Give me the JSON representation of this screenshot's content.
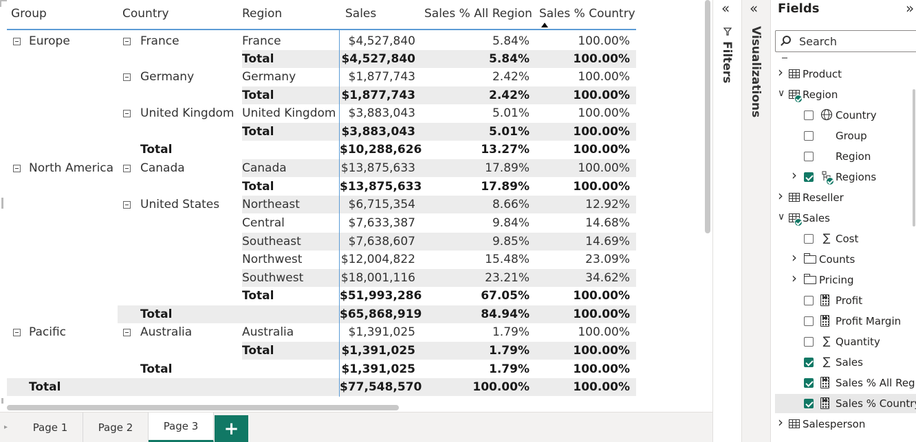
{
  "matrix": {
    "headers": [
      "Group",
      "Country",
      "Region",
      "Sales",
      "Sales % All Region",
      "Sales % Country"
    ],
    "sorted_column": "Sales % Country",
    "rows": [
      {
        "group": "Europe",
        "country": "France",
        "region": "France",
        "sales": "$4,527,840",
        "pct_all": "5.84%",
        "pct_country": "100.00%",
        "bold": false,
        "shade": false,
        "group_toggle": true,
        "country_toggle": true
      },
      {
        "group": "",
        "country": "",
        "region": "Total",
        "sales": "$4,527,840",
        "pct_all": "5.84%",
        "pct_country": "100.00%",
        "bold": true,
        "shade": true,
        "group_toggle": false,
        "country_toggle": false
      },
      {
        "group": "",
        "country": "Germany",
        "region": "Germany",
        "sales": "$1,877,743",
        "pct_all": "2.42%",
        "pct_country": "100.00%",
        "bold": false,
        "shade": false,
        "group_toggle": false,
        "country_toggle": true
      },
      {
        "group": "",
        "country": "",
        "region": "Total",
        "sales": "$1,877,743",
        "pct_all": "2.42%",
        "pct_country": "100.00%",
        "bold": true,
        "shade": true,
        "group_toggle": false,
        "country_toggle": false
      },
      {
        "group": "",
        "country": "United Kingdom",
        "region": "United Kingdom",
        "sales": "$3,883,043",
        "pct_all": "5.01%",
        "pct_country": "100.00%",
        "bold": false,
        "shade": false,
        "group_toggle": false,
        "country_toggle": true
      },
      {
        "group": "",
        "country": "",
        "region": "Total",
        "sales": "$3,883,043",
        "pct_all": "5.01%",
        "pct_country": "100.00%",
        "bold": true,
        "shade": true,
        "group_toggle": false,
        "country_toggle": false
      },
      {
        "group": "",
        "country": "Total",
        "region": "",
        "sales": "$10,288,626",
        "pct_all": "13.27%",
        "pct_country": "100.00%",
        "bold": true,
        "shade": false,
        "group_toggle": false,
        "country_toggle": false,
        "country_total": true
      },
      {
        "group": "North America",
        "country": "Canada",
        "region": "Canada",
        "sales": "$13,875,633",
        "pct_all": "17.89%",
        "pct_country": "100.00%",
        "bold": false,
        "shade": true,
        "group_toggle": true,
        "country_toggle": true
      },
      {
        "group": "",
        "country": "",
        "region": "Total",
        "sales": "$13,875,633",
        "pct_all": "17.89%",
        "pct_country": "100.00%",
        "bold": true,
        "shade": false,
        "group_toggle": false,
        "country_toggle": false
      },
      {
        "group": "",
        "country": "United States",
        "region": "Northeast",
        "sales": "$6,715,354",
        "pct_all": "8.66%",
        "pct_country": "12.92%",
        "bold": false,
        "shade": true,
        "group_toggle": false,
        "country_toggle": true
      },
      {
        "group": "",
        "country": "",
        "region": "Central",
        "sales": "$7,633,387",
        "pct_all": "9.84%",
        "pct_country": "14.68%",
        "bold": false,
        "shade": false,
        "group_toggle": false,
        "country_toggle": false
      },
      {
        "group": "",
        "country": "",
        "region": "Southeast",
        "sales": "$7,638,607",
        "pct_all": "9.85%",
        "pct_country": "14.69%",
        "bold": false,
        "shade": true,
        "group_toggle": false,
        "country_toggle": false
      },
      {
        "group": "",
        "country": "",
        "region": "Northwest",
        "sales": "$12,004,822",
        "pct_all": "15.48%",
        "pct_country": "23.09%",
        "bold": false,
        "shade": false,
        "group_toggle": false,
        "country_toggle": false
      },
      {
        "group": "",
        "country": "",
        "region": "Southwest",
        "sales": "$18,001,116",
        "pct_all": "23.21%",
        "pct_country": "34.62%",
        "bold": false,
        "shade": true,
        "group_toggle": false,
        "country_toggle": false
      },
      {
        "group": "",
        "country": "",
        "region": "Total",
        "sales": "$51,993,286",
        "pct_all": "67.05%",
        "pct_country": "100.00%",
        "bold": true,
        "shade": false,
        "group_toggle": false,
        "country_toggle": false
      },
      {
        "group": "",
        "country": "Total",
        "region": "",
        "sales": "$65,868,919",
        "pct_all": "84.94%",
        "pct_country": "100.00%",
        "bold": true,
        "shade": true,
        "group_toggle": false,
        "country_toggle": false,
        "country_total": true
      },
      {
        "group": "Pacific",
        "country": "Australia",
        "region": "Australia",
        "sales": "$1,391,025",
        "pct_all": "1.79%",
        "pct_country": "100.00%",
        "bold": false,
        "shade": false,
        "group_toggle": true,
        "country_toggle": true
      },
      {
        "group": "",
        "country": "",
        "region": "Total",
        "sales": "$1,391,025",
        "pct_all": "1.79%",
        "pct_country": "100.00%",
        "bold": true,
        "shade": true,
        "group_toggle": false,
        "country_toggle": false
      },
      {
        "group": "",
        "country": "Total",
        "region": "",
        "sales": "$1,391,025",
        "pct_all": "1.79%",
        "pct_country": "100.00%",
        "bold": true,
        "shade": false,
        "group_toggle": false,
        "country_toggle": false,
        "country_total": true
      },
      {
        "group": "Total",
        "country": "",
        "region": "",
        "sales": "$77,548,570",
        "pct_all": "100.00%",
        "pct_country": "100.00%",
        "bold": true,
        "shade": true,
        "group_toggle": false,
        "country_toggle": false,
        "grand_total": true
      }
    ]
  },
  "tabs": {
    "items": [
      "Page 1",
      "Page 2",
      "Page 3"
    ],
    "active": "Page 3",
    "add_label": "+"
  },
  "panes": {
    "filters_label": "Filters",
    "visualizations_label": "Visualizations",
    "collapse_glyph": "«",
    "expand_glyph": "»"
  },
  "fields": {
    "title": "Fields",
    "search_placeholder": "Search",
    "items": [
      {
        "label": "Product",
        "type": "table",
        "level": 0,
        "expandable": true,
        "expanded": false
      },
      {
        "label": "Region",
        "type": "table",
        "level": 0,
        "expandable": true,
        "expanded": true,
        "badge": true
      },
      {
        "label": "Country",
        "type": "globe",
        "level": 1,
        "checkbox": true,
        "checked": false
      },
      {
        "label": "Group",
        "type": "none",
        "level": 1,
        "checkbox": true,
        "checked": false
      },
      {
        "label": "Region",
        "type": "none",
        "level": 1,
        "checkbox": true,
        "checked": false
      },
      {
        "label": "Regions",
        "type": "hierarchy",
        "level": 1,
        "checkbox": true,
        "checked": true,
        "expandable": true,
        "expanded": false,
        "badge": true
      },
      {
        "label": "Reseller",
        "type": "table",
        "level": 0,
        "expandable": true,
        "expanded": false
      },
      {
        "label": "Sales",
        "type": "table",
        "level": 0,
        "expandable": true,
        "expanded": true,
        "badge": true
      },
      {
        "label": "Cost",
        "type": "sigma",
        "level": 1,
        "checkbox": true,
        "checked": false
      },
      {
        "label": "Counts",
        "type": "folder",
        "level": 1,
        "expandable": true,
        "expanded": false
      },
      {
        "label": "Pricing",
        "type": "folder",
        "level": 1,
        "expandable": true,
        "expanded": false
      },
      {
        "label": "Profit",
        "type": "calc",
        "level": 1,
        "checkbox": true,
        "checked": false
      },
      {
        "label": "Profit Margin",
        "type": "calc",
        "level": 1,
        "checkbox": true,
        "checked": false
      },
      {
        "label": "Quantity",
        "type": "sigma",
        "level": 1,
        "checkbox": true,
        "checked": false
      },
      {
        "label": "Sales",
        "type": "sigma",
        "level": 1,
        "checkbox": true,
        "checked": true
      },
      {
        "label": "Sales % All Regi...",
        "type": "calc",
        "level": 1,
        "checkbox": true,
        "checked": true
      },
      {
        "label": "Sales % Country",
        "type": "calc",
        "level": 1,
        "checkbox": true,
        "checked": true,
        "selected": true
      },
      {
        "label": "Salesperson",
        "type": "table2",
        "level": 0,
        "expandable": true,
        "expanded": false
      }
    ]
  },
  "colors": {
    "accent": "#117865",
    "header_rule": "#5b9bd5",
    "row_shade": "#ececec"
  }
}
